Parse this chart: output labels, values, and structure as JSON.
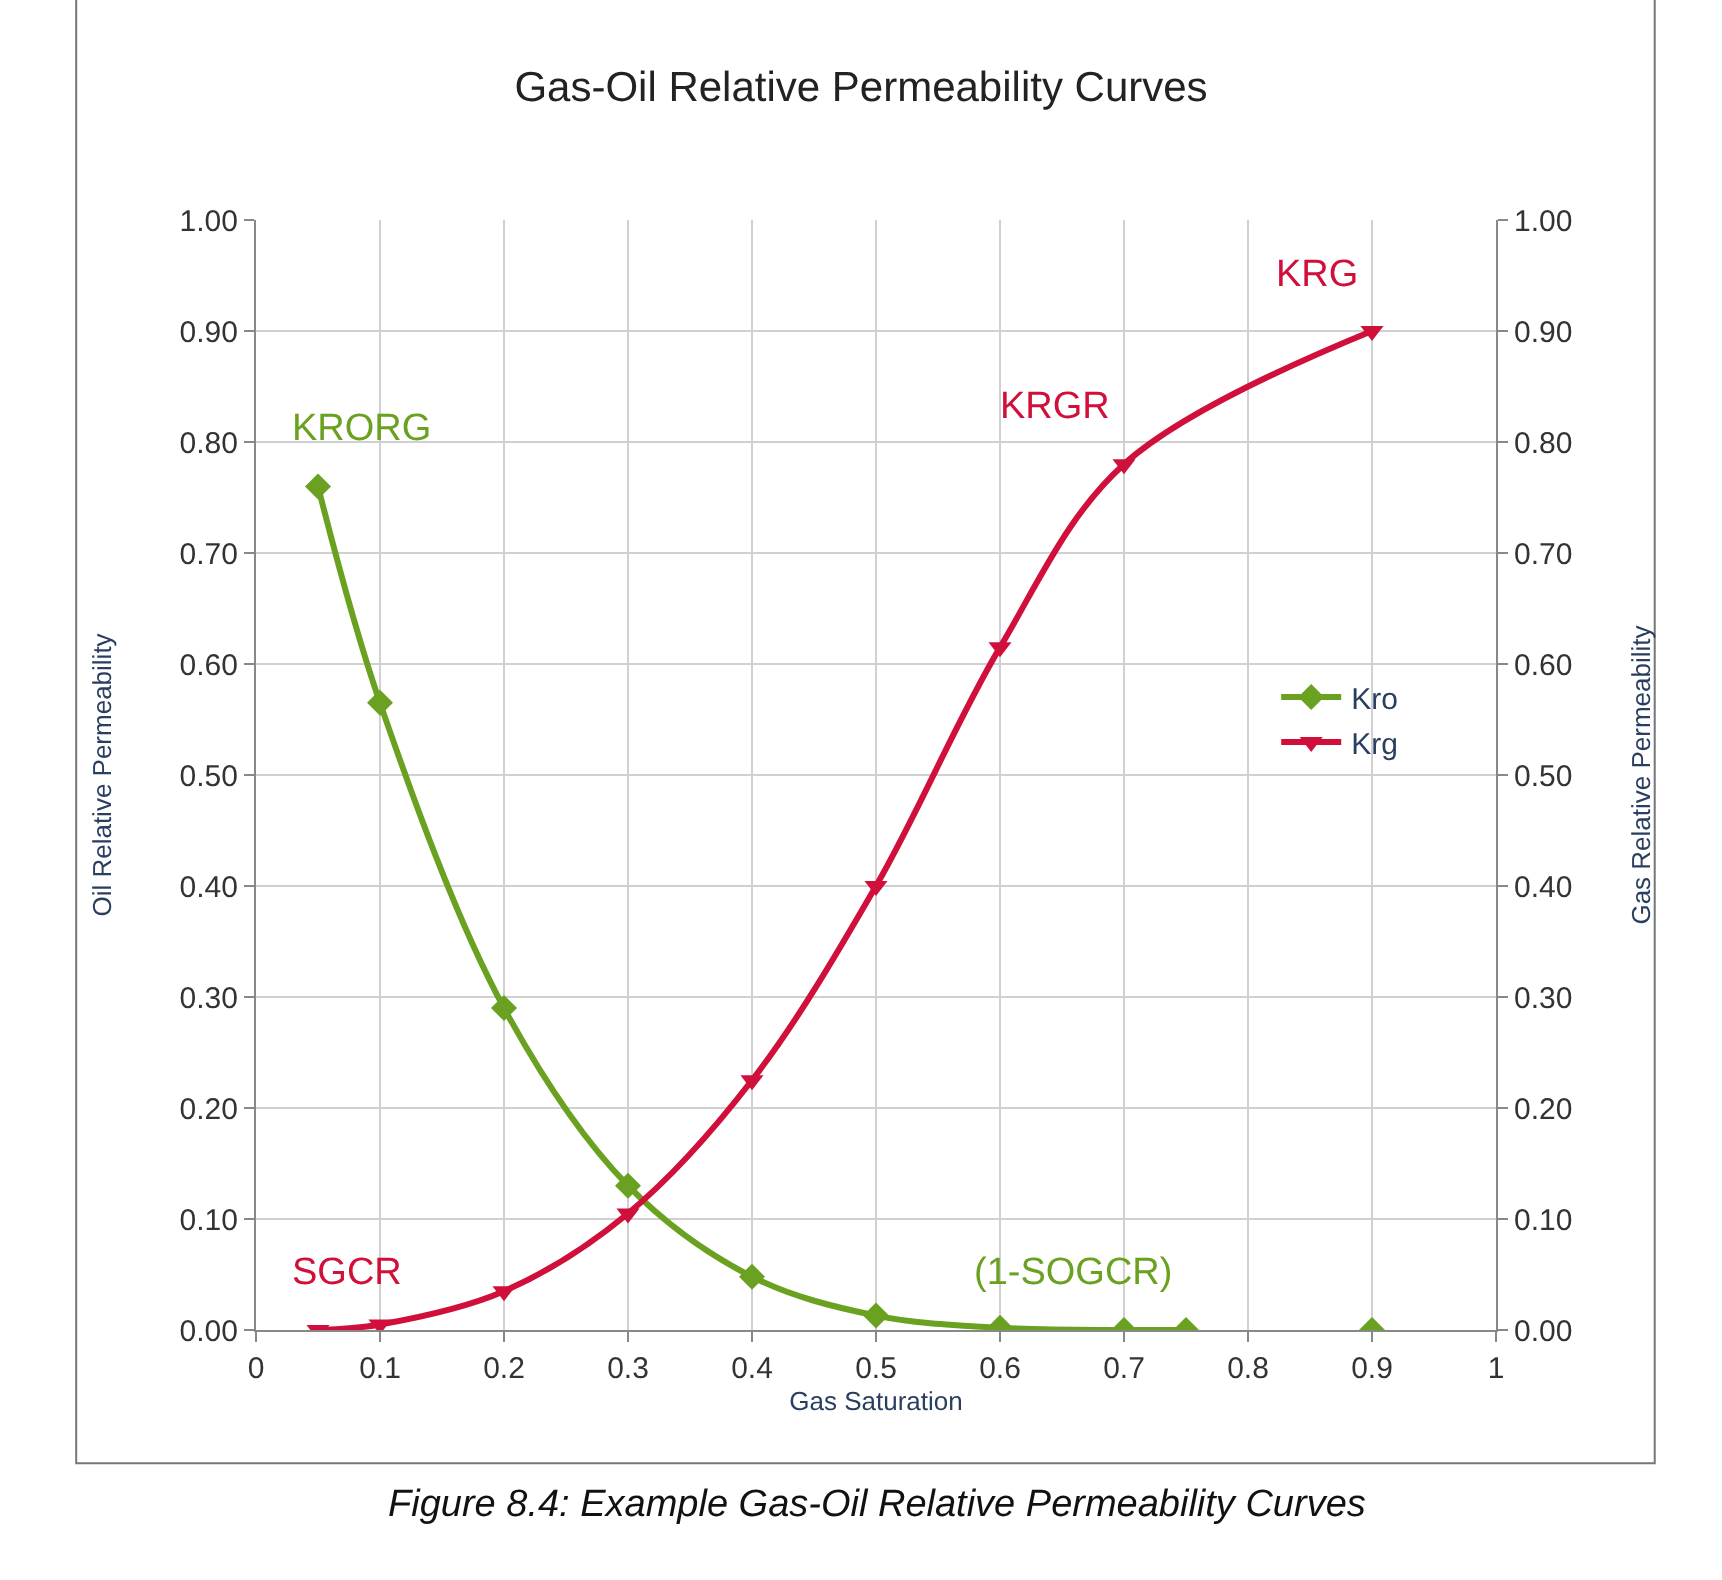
{
  "chart_data": {
    "type": "line",
    "title": "Gas-Oil Relative Permeability Curves",
    "xlabel": "Gas Saturation",
    "ylabel": "Oil Relative Permeability",
    "y2label": "Gas Relative Permeability",
    "series": [
      {
        "name": "Kro",
        "color": "#6aa121",
        "marker": "diamond",
        "x": [
          0.05,
          0.1,
          0.2,
          0.3,
          0.4,
          0.5,
          0.6,
          0.7,
          0.75,
          0.8,
          0.9
        ],
        "values": [
          0.76,
          0.565,
          0.29,
          0.13,
          0.048,
          0.013,
          0.002,
          0.0,
          0.0,
          null,
          0.0
        ]
      },
      {
        "name": "Krg",
        "color": "#d0103a",
        "marker": "triangle",
        "x": [
          0.05,
          0.1,
          0.2,
          0.3,
          0.4,
          0.5,
          0.6,
          0.7,
          0.9
        ],
        "values": [
          0.0,
          0.005,
          0.035,
          0.105,
          0.225,
          0.4,
          0.615,
          0.78,
          0.9
        ]
      }
    ],
    "annotations": [
      {
        "text": "KRORG",
        "x": 0.05,
        "y": 0.76
      },
      {
        "text": "KRG",
        "x": 0.9,
        "y": 0.9
      },
      {
        "text": "KRGR",
        "x": 0.7,
        "y": 0.78
      },
      {
        "text": "SGCR",
        "x": 0.05,
        "y": 0.0
      },
      {
        "text": "(1-SOGCR)",
        "x": 0.75,
        "y": 0.0
      },
      "Figure 8.4: Example Gas-Oil Relative Permeability Curves"
    ],
    "xlim": [
      0,
      1
    ],
    "xticks": [
      0,
      0.1,
      0.2,
      0.3,
      0.4,
      0.5,
      0.6,
      0.7,
      0.8,
      0.9,
      1
    ],
    "ylim": [
      0,
      1
    ],
    "yticks": [
      {
        "value": 0,
        "label": "0.00"
      },
      {
        "value": 0.1,
        "label": "0.10"
      },
      {
        "value": 0.2,
        "label": "0.20"
      },
      {
        "value": 0.3,
        "label": "0.30"
      },
      {
        "value": 0.4,
        "label": "0.40"
      },
      {
        "value": 0.5,
        "label": "0.50"
      },
      {
        "value": 0.6,
        "label": "0.60"
      },
      {
        "value": 0.7,
        "label": "0.70"
      },
      {
        "value": 0.8,
        "label": "0.80"
      },
      {
        "value": 0.9,
        "label": "0.90"
      },
      {
        "value": 1,
        "label": "1.00"
      }
    ],
    "y2lim": [
      0,
      1
    ],
    "y2ticks": [
      {
        "value": 0,
        "label": "0.00"
      },
      {
        "value": 0.1,
        "label": "0.10"
      },
      {
        "value": 0.2,
        "label": "0.20"
      },
      {
        "value": 0.3,
        "label": "0.30"
      },
      {
        "value": 0.4,
        "label": "0.40"
      },
      {
        "value": 0.5,
        "label": "0.50"
      },
      {
        "value": 0.6,
        "label": "0.60"
      },
      {
        "value": 0.7,
        "label": "0.70"
      },
      {
        "value": 0.8,
        "label": "0.80"
      },
      {
        "value": 0.9,
        "label": "0.90"
      },
      {
        "value": 1,
        "label": "1.00"
      }
    ],
    "grid": true,
    "legend": "right",
    "line_style": "solid"
  }
}
